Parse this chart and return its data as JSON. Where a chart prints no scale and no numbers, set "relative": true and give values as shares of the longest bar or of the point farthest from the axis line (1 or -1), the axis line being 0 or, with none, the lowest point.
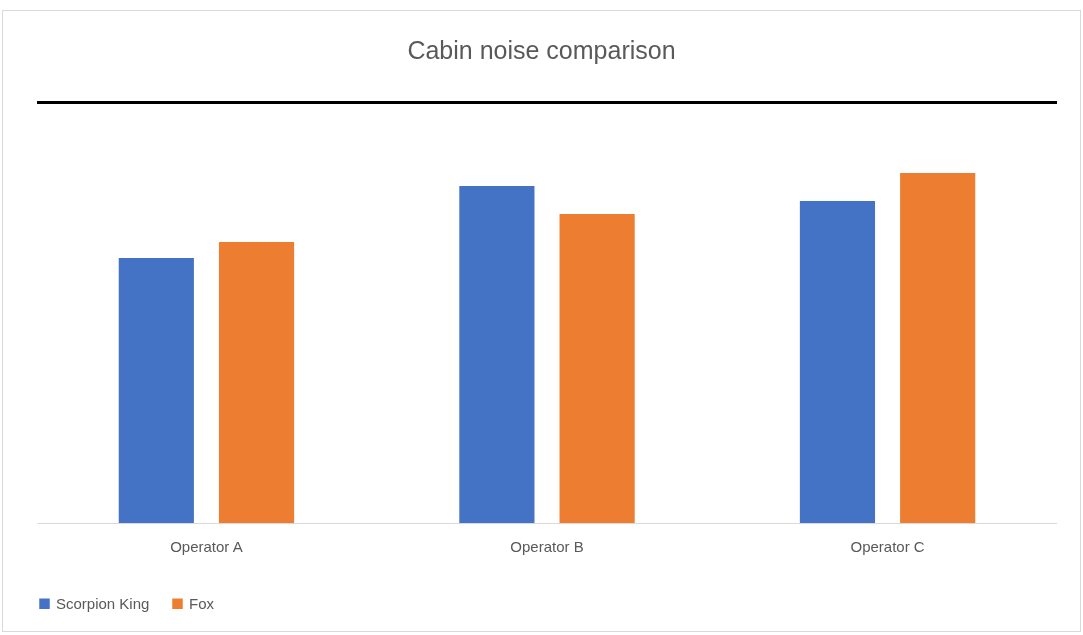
{
  "chart_data": {
    "type": "bar",
    "title": "Cabin noise comparison",
    "relative": true,
    "legend": "bottom",
    "categories": [
      "Operator A",
      "Operator B",
      "Operator C"
    ],
    "series": [
      {
        "name": "Scorpion King",
        "color": "#4472c4",
        "values": [
          0.757,
          0.963,
          0.92
        ]
      },
      {
        "name": "Fox",
        "color": "#ed7d31",
        "values": [
          0.803,
          0.883,
          1
        ]
      }
    ]
  }
}
